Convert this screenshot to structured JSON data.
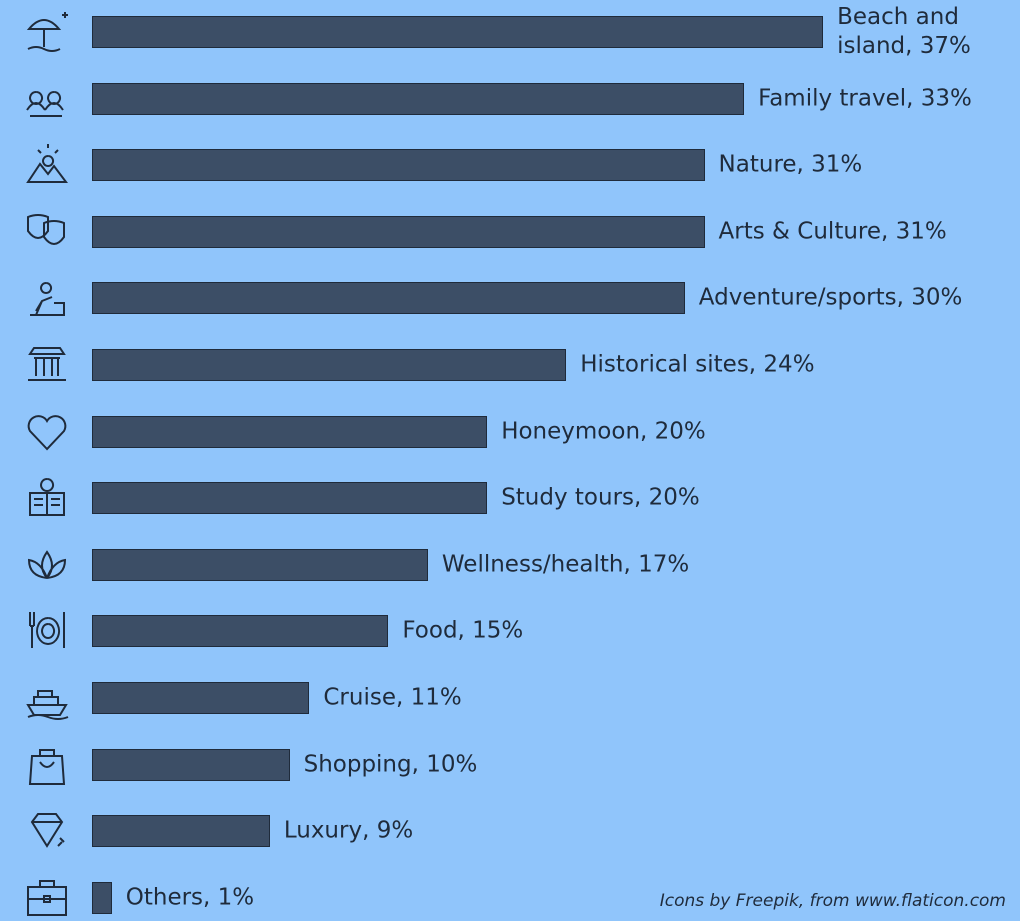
{
  "chart_data": {
    "type": "bar",
    "orientation": "horizontal",
    "color": "#3c4e66",
    "values": [
      37,
      33,
      31,
      31,
      30,
      24,
      20,
      20,
      17,
      15,
      11,
      10,
      9,
      1
    ],
    "value_labels": [
      "Beach and island, 37%",
      "Family travel, 33%",
      "Nature, 31%",
      "Arts & Culture, 31%",
      "Adventure/sports, 30%",
      "Historical sites, 24%",
      "Honeymoon, 20%",
      "Study tours, 20%",
      "Wellness/health, 17%",
      "Food, 15%",
      "Cruise, 11%",
      "Shopping, 10%",
      "Luxury, 9%",
      "Others, 1%"
    ],
    "note": "Icons by Freepik, from www.flaticon.com"
  }
}
